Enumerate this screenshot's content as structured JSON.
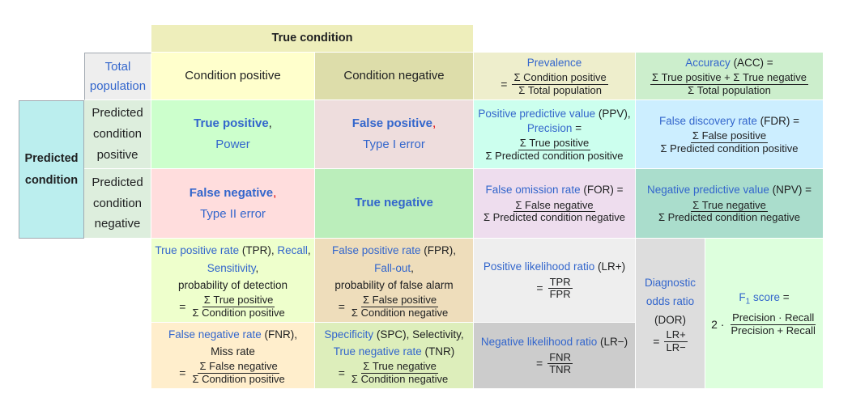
{
  "header": {
    "true_condition": "True condition",
    "predicted_condition": "Predicted condition"
  },
  "corner": {
    "total_population": "Total population"
  },
  "columns": {
    "cond_pos": "Condition positive",
    "cond_neg": "Condition negative"
  },
  "rows": {
    "pred_pos": [
      "Predicted",
      "condition",
      "positive"
    ],
    "pred_neg": [
      "Predicted",
      "condition",
      "negative"
    ]
  },
  "cells": {
    "tp": {
      "term": "True positive",
      "sep": ",",
      "sub": "Power"
    },
    "fp": {
      "term": "False positive",
      "sep": ",",
      "sub": "Type I error"
    },
    "fn": {
      "term": "False negative",
      "sep": ",",
      "sub": "Type II error"
    },
    "tn": {
      "term": "True negative"
    }
  },
  "prevalence": {
    "name": "Prevalence",
    "eq": "=",
    "num": "Σ Condition positive",
    "den": "Σ Total population"
  },
  "accuracy": {
    "name": "Accuracy",
    "abbr": " (ACC) =",
    "num": "Σ True positive + Σ True negative",
    "den": "Σ Total population"
  },
  "ppv": {
    "name": "Positive predictive value",
    "abbr": " (PPV),",
    "alt": "Precision",
    "alt_eq": " =",
    "num": "Σ True positive",
    "den": "Σ Predicted condition positive"
  },
  "fdr": {
    "name": "False discovery rate",
    "abbr": " (FDR) =",
    "num": "Σ False positive",
    "den": "Σ Predicted condition positive"
  },
  "for": {
    "name": "False omission rate",
    "abbr": " (FOR) =",
    "num": "Σ False negative",
    "den": "Σ Predicted condition negative"
  },
  "npv": {
    "name": "Negative predictive value",
    "abbr": " (NPV) =",
    "num": "Σ True negative",
    "den": "Σ Predicted condition negative"
  },
  "tpr": {
    "name": "True positive rate",
    "abbr": " (TPR), ",
    "alt1": "Recall",
    "alt1_sep": ",",
    "alt2": "Sensitivity",
    "alt2_sep": ",",
    "extra": "probability of detection",
    "eq": "=",
    "num": "Σ True positive",
    "den": "Σ Condition positive"
  },
  "fpr": {
    "name": "False positive rate",
    "abbr": " (FPR),",
    "alt1": "Fall-out",
    "alt1_sep": ",",
    "extra": "probability of false alarm",
    "eq": "=",
    "num": "Σ False positive",
    "den": "Σ Condition negative"
  },
  "fnr": {
    "name": "False negative rate",
    "abbr": " (FNR),",
    "extra": "Miss rate",
    "eq": "=",
    "num": "Σ False negative",
    "den": "Σ Condition positive"
  },
  "tnr": {
    "name": "Specificity",
    "abbr": " (SPC), Selectivity,",
    "alt1": "True negative rate",
    "alt1_abbr": " (TNR)",
    "eq": "=",
    "num": "Σ True negative",
    "den": "Σ Condition negative"
  },
  "lrp": {
    "name": "Positive likelihood ratio",
    "abbr": " (LR+)",
    "eq": "=",
    "num": "TPR",
    "den": "FPR"
  },
  "lrn": {
    "name": "Negative likelihood ratio",
    "abbr": " (LR−)",
    "eq": "=",
    "num": "FNR",
    "den": "TNR"
  },
  "dor": {
    "name1": "Diagnostic",
    "name2": "odds ratio",
    "abbr": "(DOR)",
    "eq": "=",
    "num": "LR+",
    "den": "LR−"
  },
  "f1": {
    "name": "F",
    "sub": "1",
    "name_rest": " score",
    "eq": " =",
    "coef": "2 ·",
    "num": "Precision · Recall",
    "den": "Precision + Recall"
  },
  "colors": {
    "true_condition": "#eeeebb",
    "predicted_condition": "#bbeeee",
    "corner": "#eeeeee",
    "cond_pos": "#ffffcc",
    "cond_neg": "#ddddaa",
    "pred_rows": "#ddeedd",
    "tp": "#ccffcc",
    "fp": "#eedddd",
    "fn": "#ffdddd",
    "tn": "#bbeebb",
    "prevalence": "#eeeecc",
    "accuracy": "#cceecc",
    "ppv": "#ccffee",
    "fdr": "#cceeff",
    "for": "#eeddee",
    "npv": "#aaddcc",
    "tpr": "#eeffcc",
    "fpr": "#eeddbb",
    "fnr": "#ffeecc",
    "tnr": "#ddeebb",
    "lrp": "#eeeeee",
    "lrn": "#cccccc",
    "dor": "#dddddd",
    "f1": "#ddffdd",
    "link": "#3366cc",
    "red_comma": "#dd0000"
  }
}
